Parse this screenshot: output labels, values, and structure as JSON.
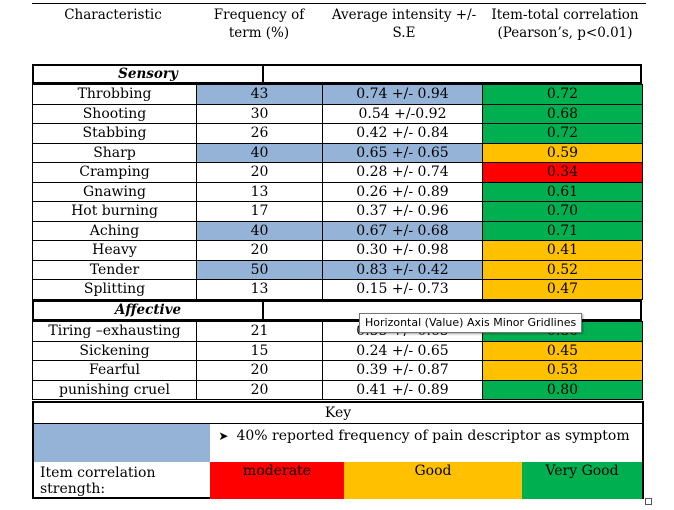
{
  "header": {
    "characteristic": "Characteristic",
    "frequency": "Frequency of term (%)",
    "intensity": "Average intensity +/- S.E",
    "correlation": "Item-total correlation (Pearson’s, p<0.01)"
  },
  "sections": {
    "sensory": "Sensory",
    "affective": "Affective"
  },
  "sensory_rows": [
    {
      "name": "Throbbing",
      "freq": "43",
      "intensity": "0.74 +/- 0.94",
      "corr": "0.72",
      "highlight": true,
      "color": "green"
    },
    {
      "name": "Shooting",
      "freq": "30",
      "intensity": "0.54 +/-0.92",
      "corr": "0.68",
      "highlight": false,
      "color": "green"
    },
    {
      "name": "Stabbing",
      "freq": "26",
      "intensity": "0.42 +/- 0.84",
      "corr": "0.72",
      "highlight": false,
      "color": "green"
    },
    {
      "name": "Sharp",
      "freq": "40",
      "intensity": "0.65 +/- 0.65",
      "corr": "0.59",
      "highlight": true,
      "color": "orange"
    },
    {
      "name": "Cramping",
      "freq": "20",
      "intensity": "0.28 +/- 0.74",
      "corr": "0.34",
      "highlight": false,
      "color": "red"
    },
    {
      "name": "Gnawing",
      "freq": "13",
      "intensity": "0.26 +/- 0.89",
      "corr": "0.61",
      "highlight": false,
      "color": "green"
    },
    {
      "name": "Hot burning",
      "freq": "17",
      "intensity": "0.37 +/- 0.96",
      "corr": "0.70",
      "highlight": false,
      "color": "green"
    },
    {
      "name": "Aching",
      "freq": "40",
      "intensity": "0.67 +/- 0.68",
      "corr": "0.71",
      "highlight": true,
      "color": "green"
    },
    {
      "name": "Heavy",
      "freq": "20",
      "intensity": "0.30 +/- 0.98",
      "corr": "0.41",
      "highlight": false,
      "color": "orange"
    },
    {
      "name": "Tender",
      "freq": "50",
      "intensity": "0.83 +/- 0.42",
      "corr": "0.52",
      "highlight": true,
      "color": "orange"
    },
    {
      "name": "Splitting",
      "freq": "13",
      "intensity": "0.15 +/- 0.73",
      "corr": "0.47",
      "highlight": false,
      "color": "orange"
    }
  ],
  "affective_rows": [
    {
      "name": "Tiring –exhausting",
      "freq": "21",
      "intensity": "0.55 +/- 0.65",
      "corr": "0.80",
      "highlight": false,
      "color": "green"
    },
    {
      "name": "Sickening",
      "freq": "15",
      "intensity": "0.24 +/- 0.65",
      "corr": "0.45",
      "highlight": false,
      "color": "orange"
    },
    {
      "name": "Fearful",
      "freq": "20",
      "intensity": "0.39 +/- 0.87",
      "corr": "0.53",
      "highlight": false,
      "color": "orange"
    },
    {
      "name": "punishing cruel",
      "freq": "20",
      "intensity": "0.41 +/- 0.89",
      "corr": "0.80",
      "highlight": false,
      "color": "green"
    }
  ],
  "key": {
    "title": "Key",
    "frequency_note": "40% reported frequency of pain descriptor as symptom",
    "strength_label": "Item correlation strength:",
    "moderate": "moderate",
    "good": "Good",
    "very_good": "Very Good"
  },
  "colors": {
    "highlight_blue": "#95b3d7",
    "green": "#00b050",
    "orange": "#ffc000",
    "red": "#ff0000"
  },
  "tooltip": "Horizontal (Value) Axis Minor Gridlines"
}
